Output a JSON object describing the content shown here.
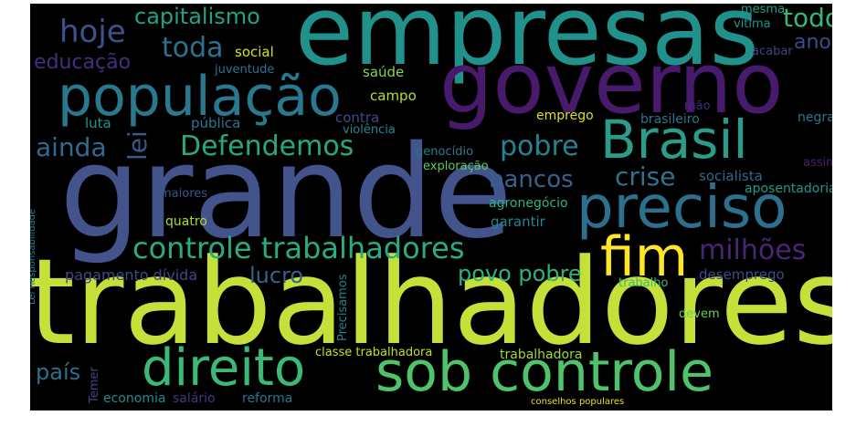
{
  "words": [
    {
      "id": "trabalhadores",
      "text": "trabalhadores",
      "color": "#c6e03a"
    },
    {
      "id": "grande",
      "text": "grande",
      "color": "#43538b"
    },
    {
      "id": "empresas",
      "text": "empresas",
      "color": "#21918c"
    },
    {
      "id": "governo",
      "text": "governo",
      "color": "#481a6c"
    },
    {
      "id": "sob-controle",
      "text": "sob controle",
      "color": "#4ec36b"
    },
    {
      "id": "populacao",
      "text": "população",
      "color": "#2a788e"
    },
    {
      "id": "direito",
      "text": "direito",
      "color": "#3aba76"
    },
    {
      "id": "brasil",
      "text": "Brasil",
      "color": "#2a9d8a"
    },
    {
      "id": "preciso",
      "text": "preciso",
      "color": "#2d708e"
    },
    {
      "id": "fim",
      "text": "fim",
      "color": "#fde725"
    },
    {
      "id": "controle-trabalhadores",
      "text": "controle trabalhadores",
      "color": "#27ad81"
    },
    {
      "id": "defendemos",
      "text": "Defendemos",
      "color": "#27a883"
    },
    {
      "id": "hoje",
      "text": "hoje",
      "color": "#3b528b"
    },
    {
      "id": "toda",
      "text": "toda",
      "color": "#2c728e"
    },
    {
      "id": "capitalismo",
      "text": "capitalismo",
      "color": "#20a386"
    },
    {
      "id": "todo",
      "text": "todo",
      "color": "#35b779"
    },
    {
      "id": "ano",
      "text": "ano",
      "color": "#3e4a89"
    },
    {
      "id": "educacao",
      "text": "educação",
      "color": "#472d7b"
    },
    {
      "id": "ainda",
      "text": "ainda",
      "color": "#2f6b8e"
    },
    {
      "id": "lei",
      "text": "lei",
      "color": "#38598c"
    },
    {
      "id": "pobre",
      "text": "pobre",
      "color": "#26828e"
    },
    {
      "id": "crise",
      "text": "crise",
      "color": "#2c738e"
    },
    {
      "id": "bancos",
      "text": "bancos",
      "color": "#33638d"
    },
    {
      "id": "milhoes",
      "text": "milhões",
      "color": "#482576"
    },
    {
      "id": "lucro",
      "text": "lucro",
      "color": "#34618d"
    },
    {
      "id": "povo-pobre",
      "text": "povo pobre",
      "color": "#2db27d"
    },
    {
      "id": "pagamento-divida",
      "text": "pagamento dívida",
      "color": "#3f4788"
    },
    {
      "id": "pais",
      "text": "país",
      "color": "#2e6e8e"
    },
    {
      "id": "social",
      "text": "social",
      "color": "#d2e21b"
    },
    {
      "id": "saude",
      "text": "saúde",
      "color": "#86d549"
    },
    {
      "id": "juventude",
      "text": "juventude",
      "color": "#2c728e"
    },
    {
      "id": "campo",
      "text": "campo",
      "color": "#b5de2b"
    },
    {
      "id": "luta",
      "text": "luta",
      "color": "#1f968b"
    },
    {
      "id": "publica",
      "text": "pública",
      "color": "#2a768e"
    },
    {
      "id": "contra",
      "text": "contra",
      "color": "#3e4a89"
    },
    {
      "id": "violencia",
      "text": "violência",
      "color": "#24868e"
    },
    {
      "id": "emprego",
      "text": "emprego",
      "color": "#d8e219"
    },
    {
      "id": "mesma",
      "text": "mesma",
      "color": "#1fa188"
    },
    {
      "id": "vitima",
      "text": "vítima",
      "color": "#20938c"
    },
    {
      "id": "acabar",
      "text": "acabar",
      "color": "#414487"
    },
    {
      "id": "mao",
      "text": "mão",
      "color": "#482878"
    },
    {
      "id": "brasileiro",
      "text": "brasileiro",
      "color": "#2c728e"
    },
    {
      "id": "negra",
      "text": "negra",
      "color": "#2a778e"
    },
    {
      "id": "genocidio",
      "text": "genocídio",
      "color": "#297b8e"
    },
    {
      "id": "exploracao",
      "text": "exploração",
      "color": "#5ec962"
    },
    {
      "id": "assim",
      "text": "assim",
      "color": "#482173"
    },
    {
      "id": "socialista",
      "text": "socialista",
      "color": "#31688e"
    },
    {
      "id": "aposentadoria",
      "text": "aposentadoria",
      "color": "#1f9a8a"
    },
    {
      "id": "maiores",
      "text": "maiores",
      "color": "#3b528b"
    },
    {
      "id": "agronegocio",
      "text": "agronegócio",
      "color": "#2fb47c"
    },
    {
      "id": "quatro",
      "text": "quatro",
      "color": "#a8db34"
    },
    {
      "id": "garantir",
      "text": "garantir",
      "color": "#25858e"
    },
    {
      "id": "desemprego",
      "text": "desemprego",
      "color": "#3d4d8a"
    },
    {
      "id": "trabalho",
      "text": "trabalho",
      "color": "#3bbb75"
    },
    {
      "id": "devem",
      "text": "devem",
      "color": "#6ccd5a"
    },
    {
      "id": "precisamos",
      "text": "Precisamos",
      "color": "#277f8e"
    },
    {
      "id": "temer",
      "text": "Temer",
      "color": "#404688"
    },
    {
      "id": "lei-responsabilidade",
      "text": "Lei Responsabilidade",
      "color": "#26828e"
    },
    {
      "id": "classe-trabalhadora",
      "text": "classe trabalhadora",
      "color": "#c2df23"
    },
    {
      "id": "trabalhadora",
      "text": "trabalhadora",
      "color": "#9dd93b"
    },
    {
      "id": "economia",
      "text": "economia",
      "color": "#228c8d"
    },
    {
      "id": "salario",
      "text": "salário",
      "color": "#453781"
    },
    {
      "id": "reforma",
      "text": "reforma",
      "color": "#2a788e"
    },
    {
      "id": "conselhos-populares",
      "text": "conselhos populares",
      "color": "#e5e419"
    }
  ]
}
